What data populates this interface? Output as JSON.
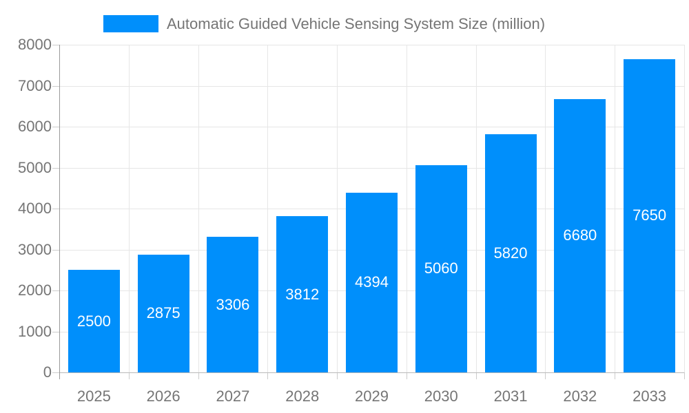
{
  "legend": {
    "label": "Automatic Guided Vehicle Sensing System Size (million)",
    "swatch_color": "#008FFB"
  },
  "chart_data": {
    "type": "bar",
    "title": "Automatic Guided Vehicle Sensing System Size (million)",
    "categories": [
      "2025",
      "2026",
      "2027",
      "2028",
      "2029",
      "2030",
      "2031",
      "2032",
      "2033"
    ],
    "values": [
      2500,
      2875,
      3306,
      3812,
      4394,
      5060,
      5820,
      6680,
      7650
    ],
    "xlabel": "",
    "ylabel": "",
    "ylim": [
      0,
      8000
    ],
    "yticks": [
      0,
      1000,
      2000,
      3000,
      4000,
      5000,
      6000,
      7000,
      8000
    ],
    "grid": true,
    "legend_position": "top",
    "bar_color": "#008FFB",
    "value_label_color": "#ffffff"
  },
  "colors": {
    "bar": "#008FFB",
    "grid": "#e6e6e6",
    "y_axis_line": "#9a9a9a",
    "x_axis_line": "#b8b8b8",
    "tick": "#cccccc",
    "axis_label": "#757575",
    "background": "#ffffff"
  }
}
